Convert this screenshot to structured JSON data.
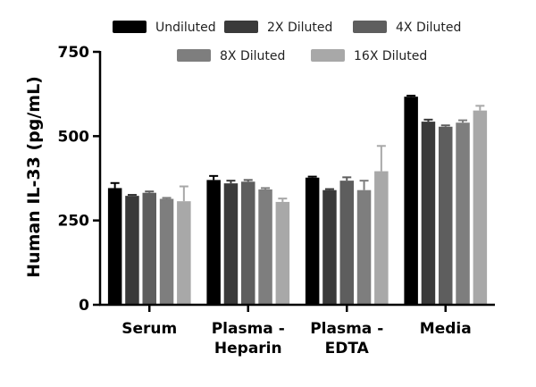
{
  "chart_data": {
    "type": "bar",
    "title": "",
    "xlabel": "",
    "ylabel": "Human IL-33 (pg/mL)",
    "ylim": [
      0,
      750
    ],
    "yticks": [
      0,
      250,
      500,
      750
    ],
    "grid": false,
    "legend_position": "top",
    "categories": [
      [
        "Serum"
      ],
      [
        "Plasma -",
        "Heparin"
      ],
      [
        "Plasma -",
        "EDTA"
      ],
      [
        "Media"
      ]
    ],
    "series": [
      {
        "name": "Undiluted",
        "color": "#000000",
        "values": [
          346,
          370,
          377,
          617
        ],
        "errors": [
          15,
          12,
          3,
          3
        ]
      },
      {
        "name": "2X Diluted",
        "color": "#3a3a3a",
        "values": [
          323,
          360,
          340,
          543
        ],
        "errors": [
          3,
          8,
          3,
          6
        ]
      },
      {
        "name": "4X Diluted",
        "color": "#5e5e5e",
        "values": [
          332,
          365,
          368,
          528
        ],
        "errors": [
          4,
          5,
          10,
          4
        ]
      },
      {
        "name": "8X Diluted",
        "color": "#7e7e7e",
        "values": [
          314,
          342,
          340,
          540
        ],
        "errors": [
          3,
          4,
          28,
          7
        ]
      },
      {
        "name": "16X Diluted",
        "color": "#a8a8a8",
        "values": [
          307,
          305,
          396,
          576
        ],
        "errors": [
          44,
          10,
          75,
          14
        ]
      }
    ]
  }
}
